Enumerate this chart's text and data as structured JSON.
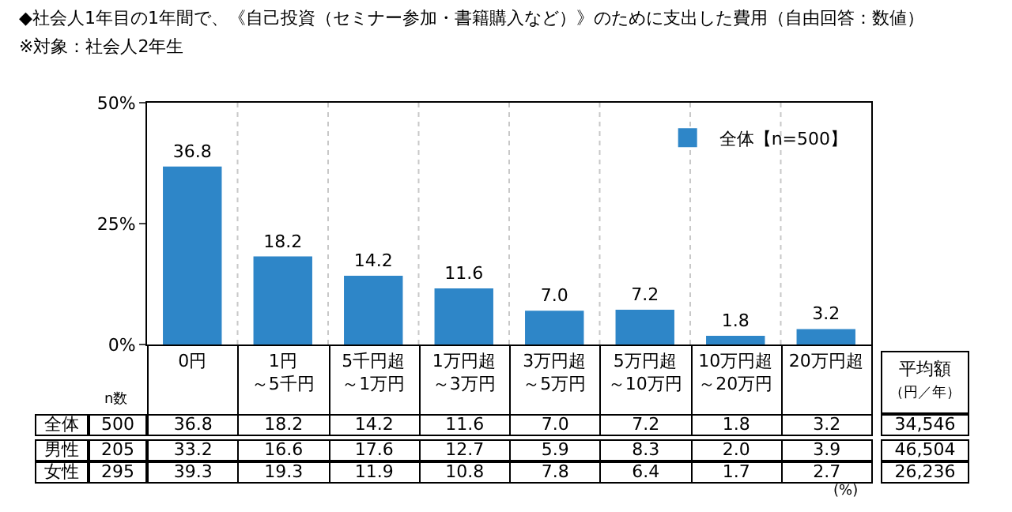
{
  "chart_data": {
    "type": "bar",
    "title": "◆社会人1年目の1年間で、《自己投資（セミナー参加・書籍購入など）》のために支出した費用（自由回答：数値）",
    "subtitle": "※対象：社会人2年生",
    "categories": [
      "0円",
      "1円～5千円",
      "5千円超～1万円",
      "1万円超～3万円",
      "3万円超～5万円",
      "5万円超～10万円",
      "10万円超～20万円",
      "20万円超"
    ],
    "series": [
      {
        "name": "全体【n=500】",
        "color": "#2e86c8",
        "values": [
          36.8,
          18.2,
          14.2,
          11.6,
          7.0,
          7.2,
          1.8,
          3.2
        ],
        "value_labels": [
          "36.8",
          "18.2",
          "14.2",
          "11.6",
          "7.0",
          "7.2",
          "1.8",
          "3.2"
        ]
      }
    ],
    "ylim": [
      0,
      50
    ],
    "yticks": [
      {
        "value": 0,
        "label": "0%"
      },
      {
        "value": 25,
        "label": "25%"
      },
      {
        "value": 50,
        "label": "50%"
      }
    ],
    "grid": "x",
    "legend": "top right",
    "annotations": [
      "n数",
      "平均額（円／年）",
      "全体",
      "500",
      "36.8",
      "18.2",
      "14.2",
      "11.6",
      "7.0",
      "7.2",
      "1.8",
      "3.2",
      "34,546",
      "男性",
      "205",
      "33.2",
      "16.6",
      "17.6",
      "12.7",
      "5.9",
      "8.3",
      "2.0",
      "3.9",
      "46,504",
      "女性",
      "295",
      "39.3",
      "19.3",
      "11.9",
      "10.8",
      "7.8",
      "6.4",
      "1.7",
      "2.7",
      "26,236",
      "(%)"
    ]
  }
}
